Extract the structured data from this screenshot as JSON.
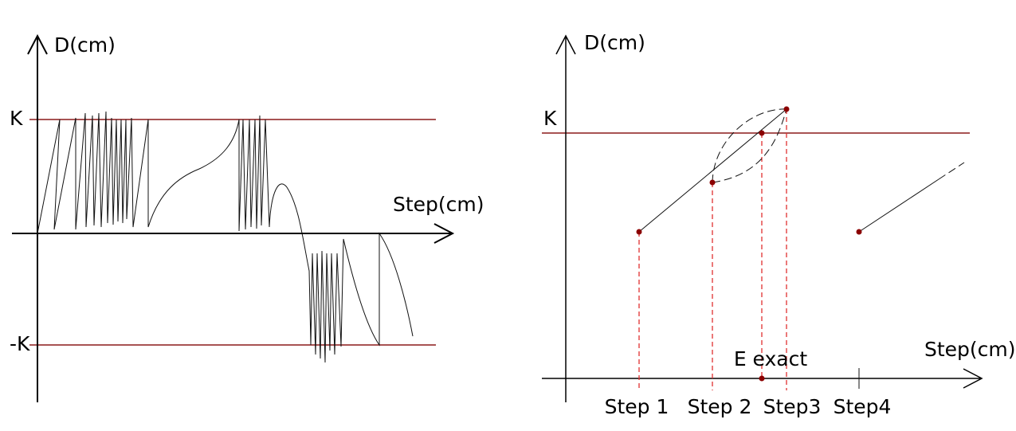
{
  "left_panel": {
    "y_axis_label": "D(cm)",
    "x_axis_label": "Step(cm)",
    "upper_limit": "K",
    "lower_limit": "-K"
  },
  "right_panel": {
    "y_axis_label": "D(cm)",
    "x_axis_label": "Step(cm)",
    "upper_limit": "K",
    "exact_label": "E exact",
    "steps": [
      "Step 1",
      "Step 2",
      "Step3",
      "Step4"
    ]
  }
}
